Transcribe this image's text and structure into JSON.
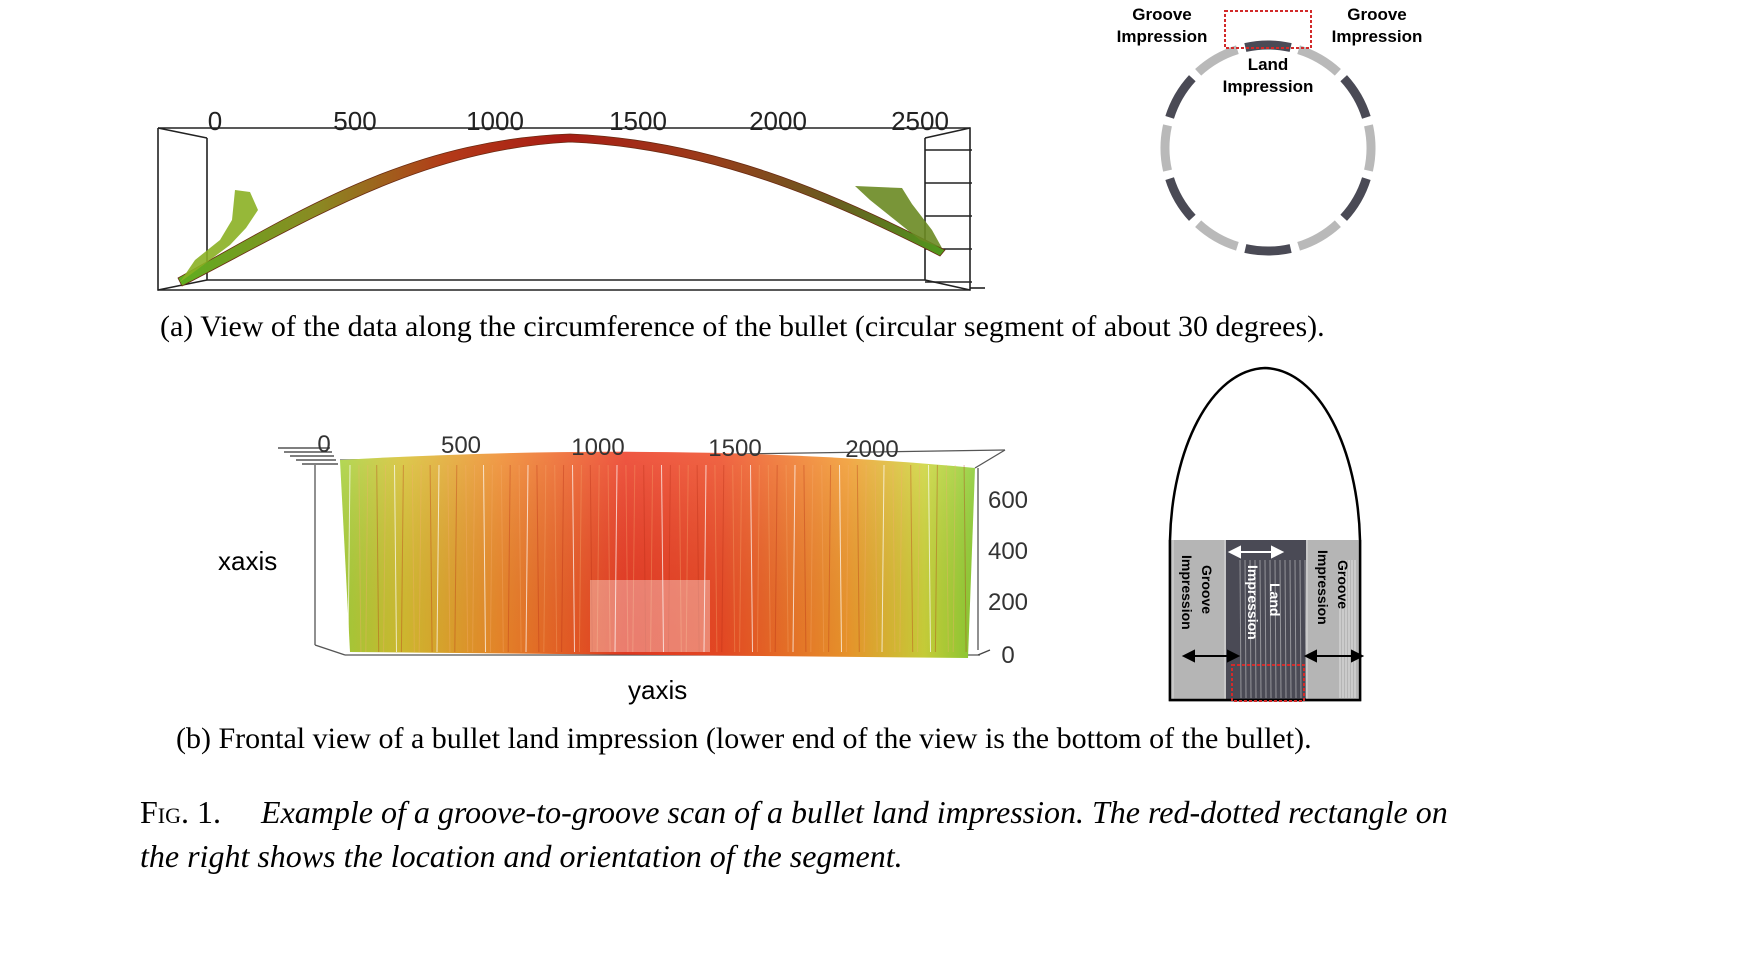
{
  "panel_a": {
    "x_ticks": [
      "0",
      "500",
      "1000",
      "1500",
      "2000",
      "2500"
    ],
    "caption": "(a) View of the data along the circumference of the bullet (circular segment of about 30 degrees)."
  },
  "panel_b": {
    "x_ticks": [
      "0",
      "500",
      "1000",
      "1500",
      "2000"
    ],
    "z_ticks": [
      "600",
      "400",
      "200",
      "0"
    ],
    "xlabel": "yaxis",
    "ylabel": "xaxis",
    "caption": "(b) Frontal view of a bullet land impression (lower end of the view is the bottom of the bullet)."
  },
  "circle_diagram": {
    "groove_left_1": "Groove",
    "groove_left_2": "Impression",
    "groove_right_1": "Groove",
    "groove_right_2": "Impression",
    "land_1": "Land",
    "land_2": "Impression"
  },
  "bullet_diagram": {
    "groove_left_1": "Groove",
    "groove_left_2": "Impression",
    "land_1": "Land",
    "land_2": "Impression",
    "groove_right_1": "Groove",
    "groove_right_2": "Impression"
  },
  "figure_caption": {
    "label": "Fig. 1.",
    "text": "Example of a groove-to-groove scan of a bullet land impression. The red-dotted rectangle on the right shows the location and orientation of the segment."
  },
  "colors": {
    "high": "#e8241c",
    "mid": "#f07a20",
    "low": "#7cc424",
    "groove_gray": "#b9b9b9",
    "land_dark": "#4a4a55",
    "highlight_red": "#d22a2a"
  }
}
